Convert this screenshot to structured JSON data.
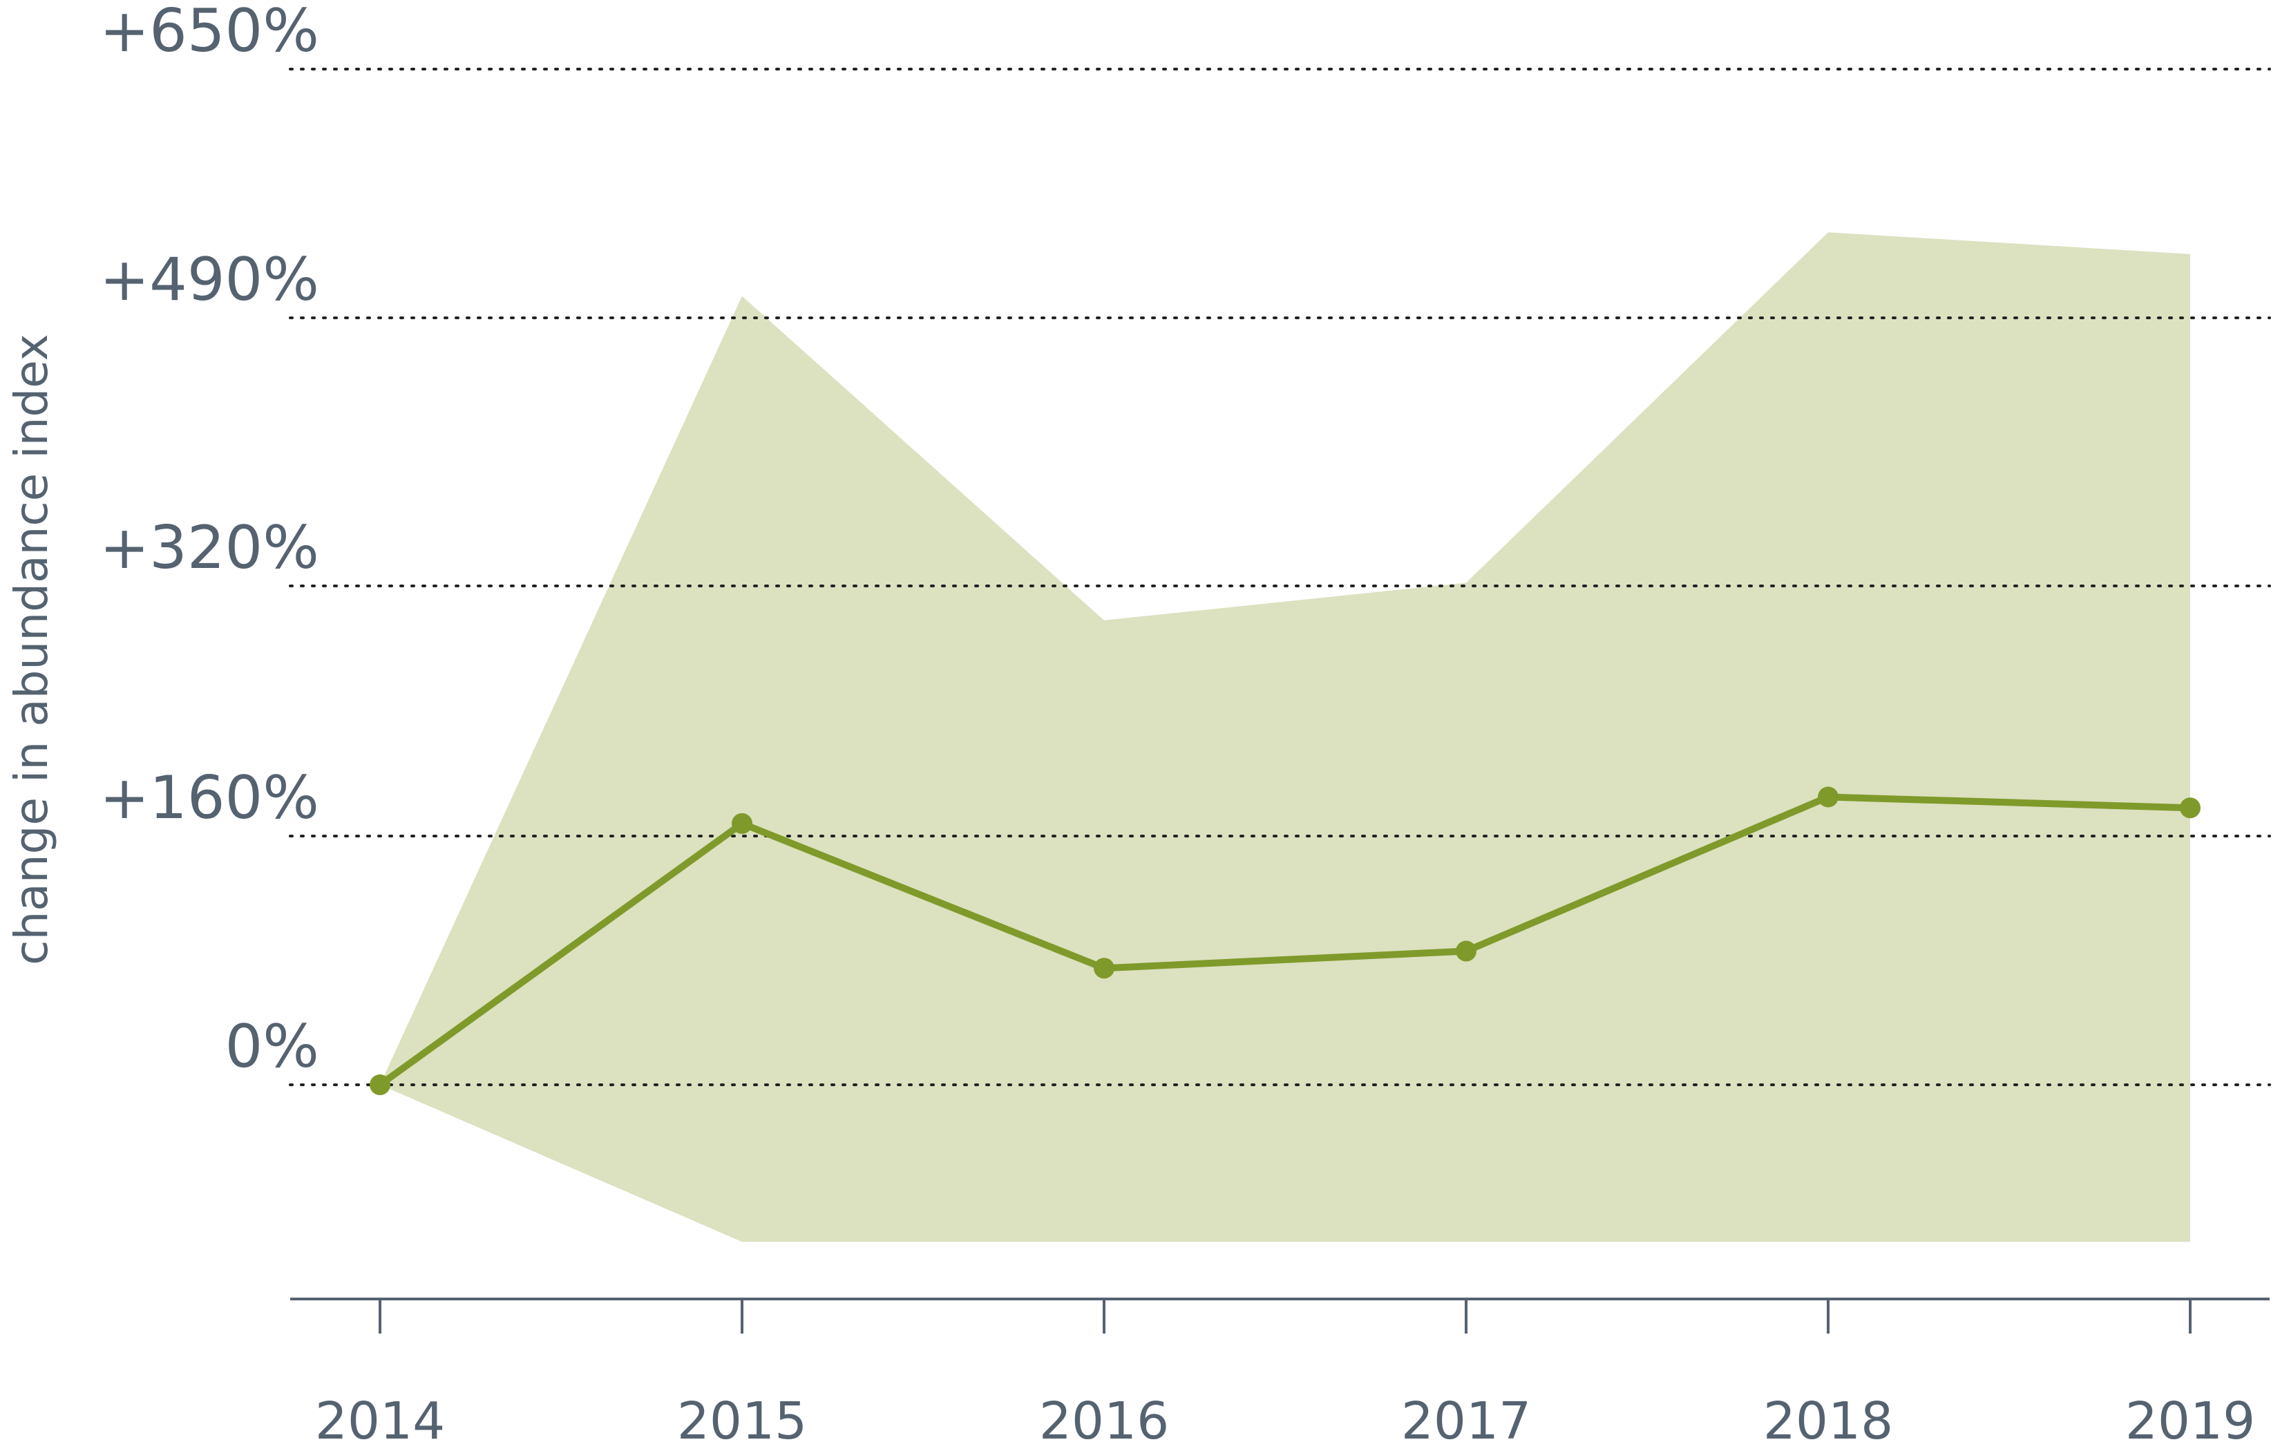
{
  "chart_data": {
    "type": "line",
    "title": "",
    "xlabel": "",
    "ylabel": "change in abundance index",
    "categories": [
      "2014",
      "2015",
      "2016",
      "2017",
      "2018",
      "2019"
    ],
    "series": [
      {
        "values": [
          0,
          168,
          75,
          86,
          185,
          178
        ]
      }
    ],
    "band": {
      "upper": [
        0,
        504,
        298,
        322,
        545,
        531
      ],
      "lower": [
        0,
        -101,
        -101,
        -101,
        -101,
        -101
      ]
    },
    "yticks": [
      {
        "value": 0,
        "label": "0%"
      },
      {
        "value": 160,
        "label": "+160%"
      },
      {
        "value": 320,
        "label": "+320%"
      },
      {
        "value": 490,
        "label": "+490%"
      },
      {
        "value": 650,
        "label": "+650%"
      }
    ],
    "ylim": [
      -140,
      650
    ],
    "grid": true,
    "colors": {
      "line": "#7f9a2a",
      "band": "#dce1c0",
      "text": "#556270",
      "axis": "#556270"
    }
  }
}
